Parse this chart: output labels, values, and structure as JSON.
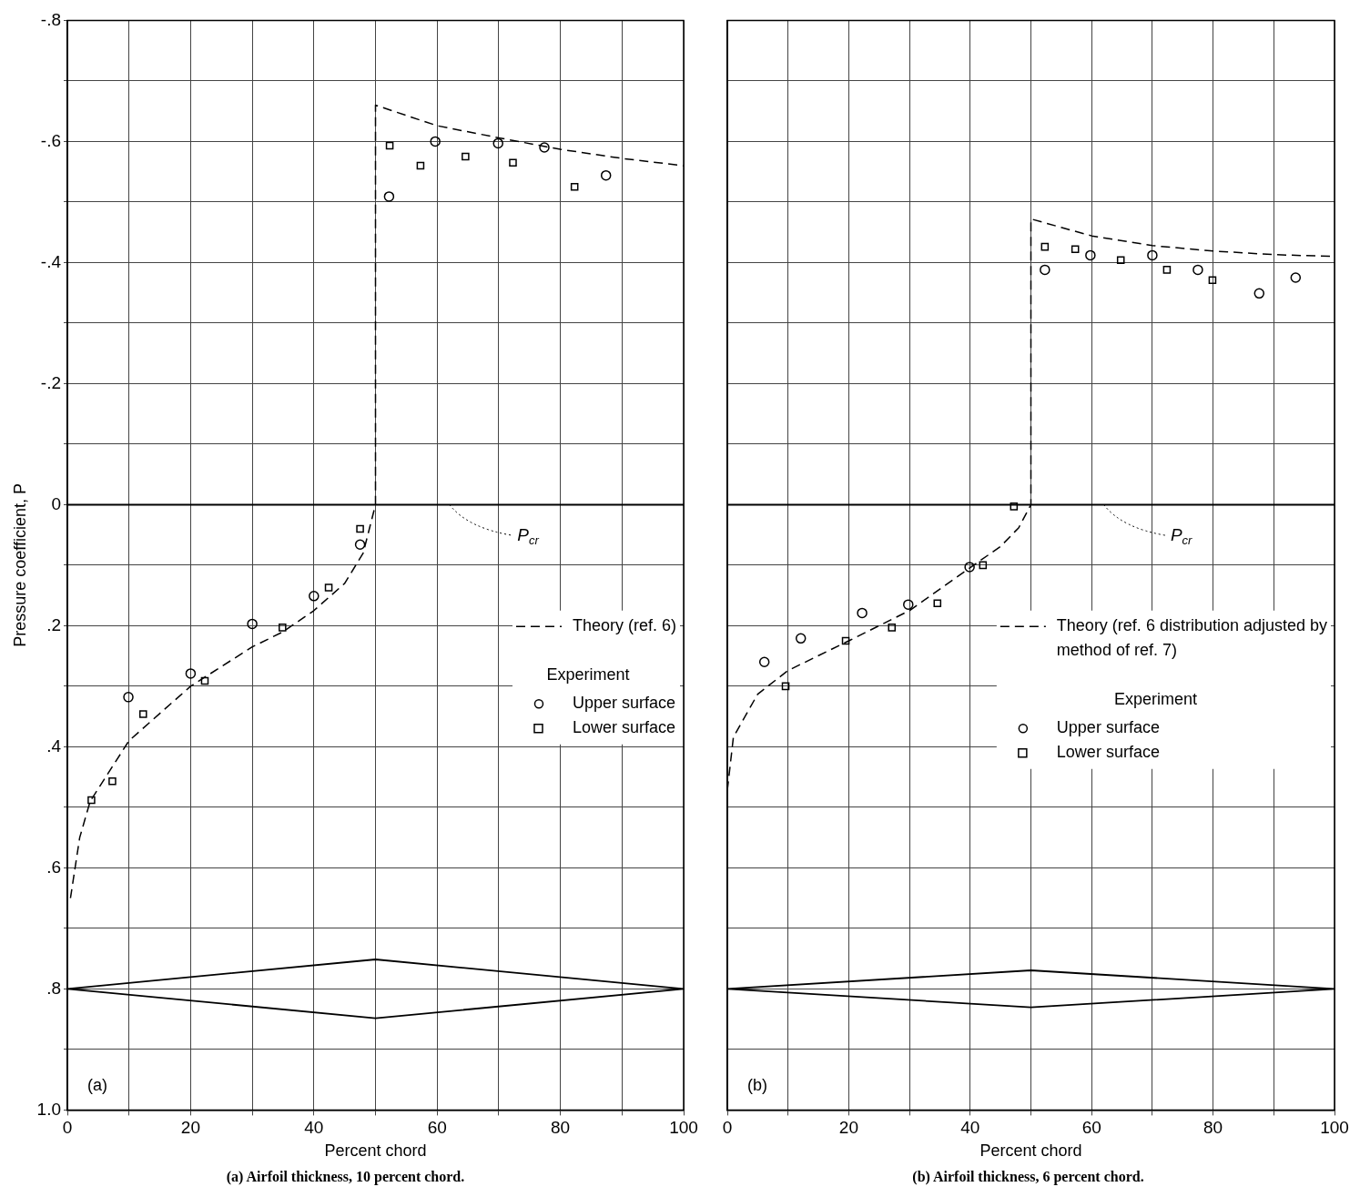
{
  "chart_data": [
    {
      "type": "scatter",
      "title": "(a) Airfoil thickness, 10 percent chord.",
      "xlabel": "Percent chord",
      "ylabel": "Pressure coefficient, P",
      "legend_title": "Experiment",
      "annotations": [
        "(a)"
      ],
      "xlim": [
        0,
        100
      ],
      "xticks": [
        0,
        {
          "value": 10,
          "label": null
        },
        20,
        {
          "value": 30,
          "label": null
        },
        40,
        {
          "value": 50,
          "label": null
        },
        60,
        {
          "value": 70,
          "label": null
        },
        80,
        {
          "value": 90,
          "label": null
        },
        100
      ],
      "ylim": [
        1.0,
        -0.8
      ],
      "yticks": [
        {
          "value": -0.8,
          "label": "-.8"
        },
        {
          "value": -0.7,
          "label": null
        },
        {
          "value": -0.6,
          "label": "-.6"
        },
        {
          "value": -0.5,
          "label": null
        },
        {
          "value": -0.4,
          "label": "-.4"
        },
        {
          "value": -0.3,
          "label": null
        },
        {
          "value": -0.2,
          "label": "-.2"
        },
        {
          "value": -0.1,
          "label": null
        },
        0,
        {
          "value": 0.1,
          "label": null
        },
        {
          "value": 0.2,
          "label": ".2"
        },
        {
          "value": 0.3,
          "label": null
        },
        {
          "value": 0.4,
          "label": ".4"
        },
        {
          "value": 0.5,
          "label": null
        },
        {
          "value": 0.6,
          "label": ".6"
        },
        {
          "value": 0.7,
          "label": null
        },
        {
          "value": 0.8,
          "label": ".8"
        },
        {
          "value": 0.9,
          "label": null
        },
        {
          "value": 1.0,
          "label": "1.0"
        }
      ],
      "grid": true,
      "legend": "right",
      "ref_lines": [
        {
          "axis": "y",
          "value": 0,
          "label": "P$_{cr}$",
          "color": "#000000"
        }
      ],
      "series": [
        {
          "name": "Theory (ref. 6)",
          "type": "line",
          "color": "#000000",
          "line_style": "dashed",
          "marker": "none",
          "x": [
            0.5,
            2,
            3.7,
            10,
            20,
            30,
            35,
            40,
            45,
            48,
            50,
            50,
            60,
            70,
            80,
            90,
            100
          ],
          "values": [
            0.65,
            0.55,
            0.49,
            0.39,
            0.3,
            0.235,
            0.21,
            0.175,
            0.13,
            0.08,
            0,
            -0.66,
            -0.626,
            -0.606,
            -0.587,
            -0.572,
            -0.56
          ]
        },
        {
          "name": "Upper surface",
          "type": "scatter",
          "color": "#000000",
          "marker": "circle",
          "x": [
            9.9,
            20,
            30,
            40,
            47.5,
            52.2,
            59.7,
            69.9,
            77.4,
            87.4
          ],
          "values": [
            0.318,
            0.279,
            0.197,
            0.151,
            0.066,
            -0.509,
            -0.6,
            -0.597,
            -0.59,
            -0.544
          ]
        },
        {
          "name": "Lower surface",
          "type": "scatter",
          "color": "#000000",
          "marker": "square",
          "x": [
            3.9,
            7.3,
            12.3,
            22.3,
            34.9,
            42.4,
            47.5,
            52.3,
            57.3,
            64.6,
            72.3,
            82.3
          ],
          "values": [
            0.488,
            0.457,
            0.346,
            0.291,
            0.203,
            0.137,
            0.04,
            -0.593,
            -0.56,
            -0.575,
            -0.565,
            -0.525
          ]
        }
      ]
    },
    {
      "type": "scatter",
      "title": "(b) Airfoil thickness, 6 percent chord.",
      "xlabel": "Percent chord",
      "legend_title": "Experiment",
      "annotations": [
        "(b)"
      ],
      "tick_labels": "x",
      "xlim": [
        0,
        100
      ],
      "xticks": [
        0,
        {
          "value": 10,
          "label": null
        },
        20,
        {
          "value": 30,
          "label": null
        },
        40,
        {
          "value": 50,
          "label": null
        },
        60,
        {
          "value": 70,
          "label": null
        },
        80,
        {
          "value": 90,
          "label": null
        },
        100
      ],
      "ylim": [
        1.0,
        -0.8
      ],
      "yticks": [
        {
          "value": -0.8,
          "label": null
        },
        {
          "value": -0.7,
          "label": null
        },
        {
          "value": -0.6,
          "label": null
        },
        {
          "value": -0.5,
          "label": null
        },
        {
          "value": -0.4,
          "label": null
        },
        {
          "value": -0.3,
          "label": null
        },
        {
          "value": -0.2,
          "label": null
        },
        {
          "value": -0.1,
          "label": null
        },
        {
          "value": 0,
          "label": null
        },
        {
          "value": 0.1,
          "label": null
        },
        {
          "value": 0.2,
          "label": null
        },
        {
          "value": 0.3,
          "label": null
        },
        {
          "value": 0.4,
          "label": null
        },
        {
          "value": 0.5,
          "label": null
        },
        {
          "value": 0.6,
          "label": null
        },
        {
          "value": 0.7,
          "label": null
        },
        {
          "value": 0.8,
          "label": null
        },
        {
          "value": 0.9,
          "label": null
        },
        {
          "value": 1.0,
          "label": null
        }
      ],
      "grid": true,
      "legend": "right",
      "ref_lines": [
        {
          "axis": "y",
          "value": 0,
          "label": "P$_{cr}$",
          "color": "#000000"
        }
      ],
      "series": [
        {
          "name": "Theory (ref. 6 distribution adjusted by method of ref. 7)",
          "type": "line",
          "color": "#000000",
          "line_style": "dashed",
          "marker": "none",
          "x": [
            0,
            1,
            5,
            10,
            20,
            30,
            40,
            45,
            48,
            50,
            50,
            60,
            70,
            80,
            90,
            100
          ],
          "values": [
            0.472,
            0.384,
            0.313,
            0.274,
            0.225,
            0.175,
            0.104,
            0.069,
            0.038,
            0,
            -0.472,
            -0.444,
            -0.428,
            -0.419,
            -0.413,
            -0.41
          ]
        },
        {
          "name": "Upper surface",
          "type": "scatter",
          "color": "#000000",
          "marker": "circle",
          "x": [
            6.1,
            12.1,
            22.2,
            29.8,
            39.9,
            52.3,
            59.8,
            70,
            77.5,
            87.6,
            93.6
          ],
          "values": [
            0.26,
            0.221,
            0.179,
            0.165,
            0.103,
            -0.388,
            -0.412,
            -0.412,
            -0.388,
            -0.349,
            -0.375
          ]
        },
        {
          "name": "Lower surface",
          "type": "scatter",
          "color": "#000000",
          "marker": "square",
          "x": [
            9.6,
            19.5,
            27.1,
            34.6,
            42.1,
            47.2,
            52.3,
            57.3,
            64.8,
            72.4,
            79.9
          ],
          "values": [
            0.3,
            0.225,
            0.203,
            0.163,
            0.1,
            0.003,
            -0.426,
            -0.422,
            -0.404,
            -0.388,
            -0.371
          ]
        }
      ]
    }
  ]
}
